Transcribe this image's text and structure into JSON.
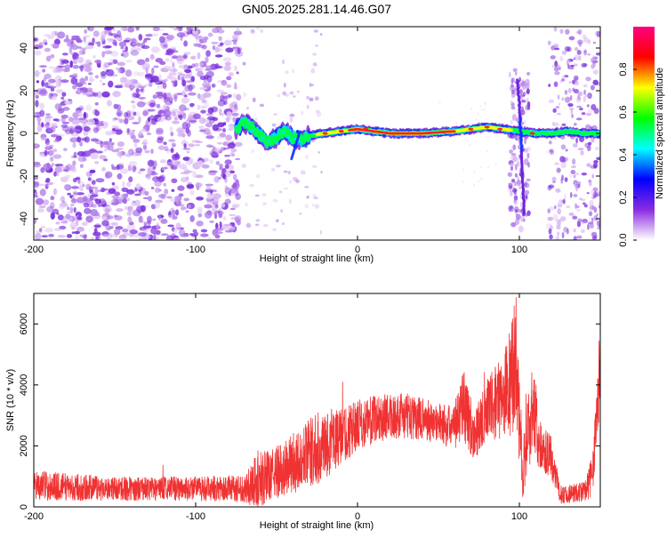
{
  "title": "GN05.2025.281.14.46.G07",
  "chart_data": [
    {
      "type": "heatmap",
      "title": "GN05.2025.281.14.46.G07",
      "xlabel": "Height of straight line (km)",
      "ylabel": "Frequency (Hz)",
      "xlim": [
        -200,
        150
      ],
      "ylim": [
        -50,
        50
      ],
      "x_ticks": [
        -200,
        -100,
        0,
        100
      ],
      "y_ticks": [
        -40,
        -20,
        0,
        20,
        40
      ],
      "colorbar": {
        "label": "Normalized spectral amplitude",
        "range": [
          0,
          1
        ],
        "ticks": [
          0,
          0.2,
          0.4,
          0.6,
          0.8
        ],
        "tick_labels": [
          "0.0",
          "0.2",
          "0.4",
          "0.6",
          "0.8"
        ],
        "colors": [
          "#ffffff",
          "#8a2be2",
          "#0000ff",
          "#00ffff",
          "#00ff00",
          "#ffff00",
          "#ff0000",
          "#ff0080"
        ]
      },
      "ridge_center_hz": [
        {
          "x": -75,
          "f": 2
        },
        {
          "x": -70,
          "f": 5
        },
        {
          "x": -65,
          "f": 3
        },
        {
          "x": -60,
          "f": -1
        },
        {
          "x": -55,
          "f": -4
        },
        {
          "x": -50,
          "f": -2
        },
        {
          "x": -45,
          "f": 1
        },
        {
          "x": -40,
          "f": -2
        },
        {
          "x": -35,
          "f": -3
        },
        {
          "x": -30,
          "f": -1
        },
        {
          "x": -20,
          "f": 0
        },
        {
          "x": -10,
          "f": 1
        },
        {
          "x": 0,
          "f": 2
        },
        {
          "x": 10,
          "f": 1
        },
        {
          "x": 20,
          "f": 0
        },
        {
          "x": 40,
          "f": 0
        },
        {
          "x": 60,
          "f": 1
        },
        {
          "x": 70,
          "f": 2
        },
        {
          "x": 80,
          "f": 3
        },
        {
          "x": 90,
          "f": 2
        },
        {
          "x": 100,
          "f": 1
        },
        {
          "x": 110,
          "f": 0
        },
        {
          "x": 120,
          "f": 0
        },
        {
          "x": 130,
          "f": 1
        },
        {
          "x": 140,
          "f": 0
        },
        {
          "x": 150,
          "f": 0
        }
      ]
    },
    {
      "type": "line",
      "xlabel": "Height of straight line (km)",
      "ylabel": "SNR (10 * v/v)",
      "xlim": [
        -200,
        150
      ],
      "ylim": [
        0,
        7000
      ],
      "x_ticks": [
        -200,
        -100,
        0,
        100
      ],
      "y_ticks": [
        0,
        2000,
        4000,
        6000
      ],
      "color": "#f03232",
      "envelope": [
        {
          "x": -200,
          "mean": 700,
          "amp": 500
        },
        {
          "x": -150,
          "mean": 600,
          "amp": 400
        },
        {
          "x": -100,
          "mean": 600,
          "amp": 400
        },
        {
          "x": -70,
          "mean": 600,
          "amp": 450
        },
        {
          "x": -62,
          "mean": 900,
          "amp": 1000
        },
        {
          "x": -55,
          "mean": 1000,
          "amp": 800
        },
        {
          "x": -40,
          "mean": 1400,
          "amp": 1000
        },
        {
          "x": -25,
          "mean": 1900,
          "amp": 1200
        },
        {
          "x": -10,
          "mean": 2300,
          "amp": 1000
        },
        {
          "x": 0,
          "mean": 2700,
          "amp": 800
        },
        {
          "x": 20,
          "mean": 3000,
          "amp": 800
        },
        {
          "x": 40,
          "mean": 2900,
          "amp": 700
        },
        {
          "x": 60,
          "mean": 2600,
          "amp": 700
        },
        {
          "x": 65,
          "mean": 3500,
          "amp": 1300
        },
        {
          "x": 72,
          "mean": 2300,
          "amp": 800
        },
        {
          "x": 80,
          "mean": 3200,
          "amp": 1000
        },
        {
          "x": 90,
          "mean": 3600,
          "amp": 1400
        },
        {
          "x": 98,
          "mean": 4600,
          "amp": 2300
        },
        {
          "x": 102,
          "mean": 1200,
          "amp": 900
        },
        {
          "x": 108,
          "mean": 3400,
          "amp": 1800
        },
        {
          "x": 113,
          "mean": 2000,
          "amp": 800
        },
        {
          "x": 120,
          "mean": 1600,
          "amp": 700
        },
        {
          "x": 125,
          "mean": 400,
          "amp": 300
        },
        {
          "x": 140,
          "mean": 500,
          "amp": 350
        },
        {
          "x": 145,
          "mean": 1000,
          "amp": 700
        },
        {
          "x": 150,
          "mean": 4600,
          "amp": 1200
        }
      ]
    }
  ]
}
